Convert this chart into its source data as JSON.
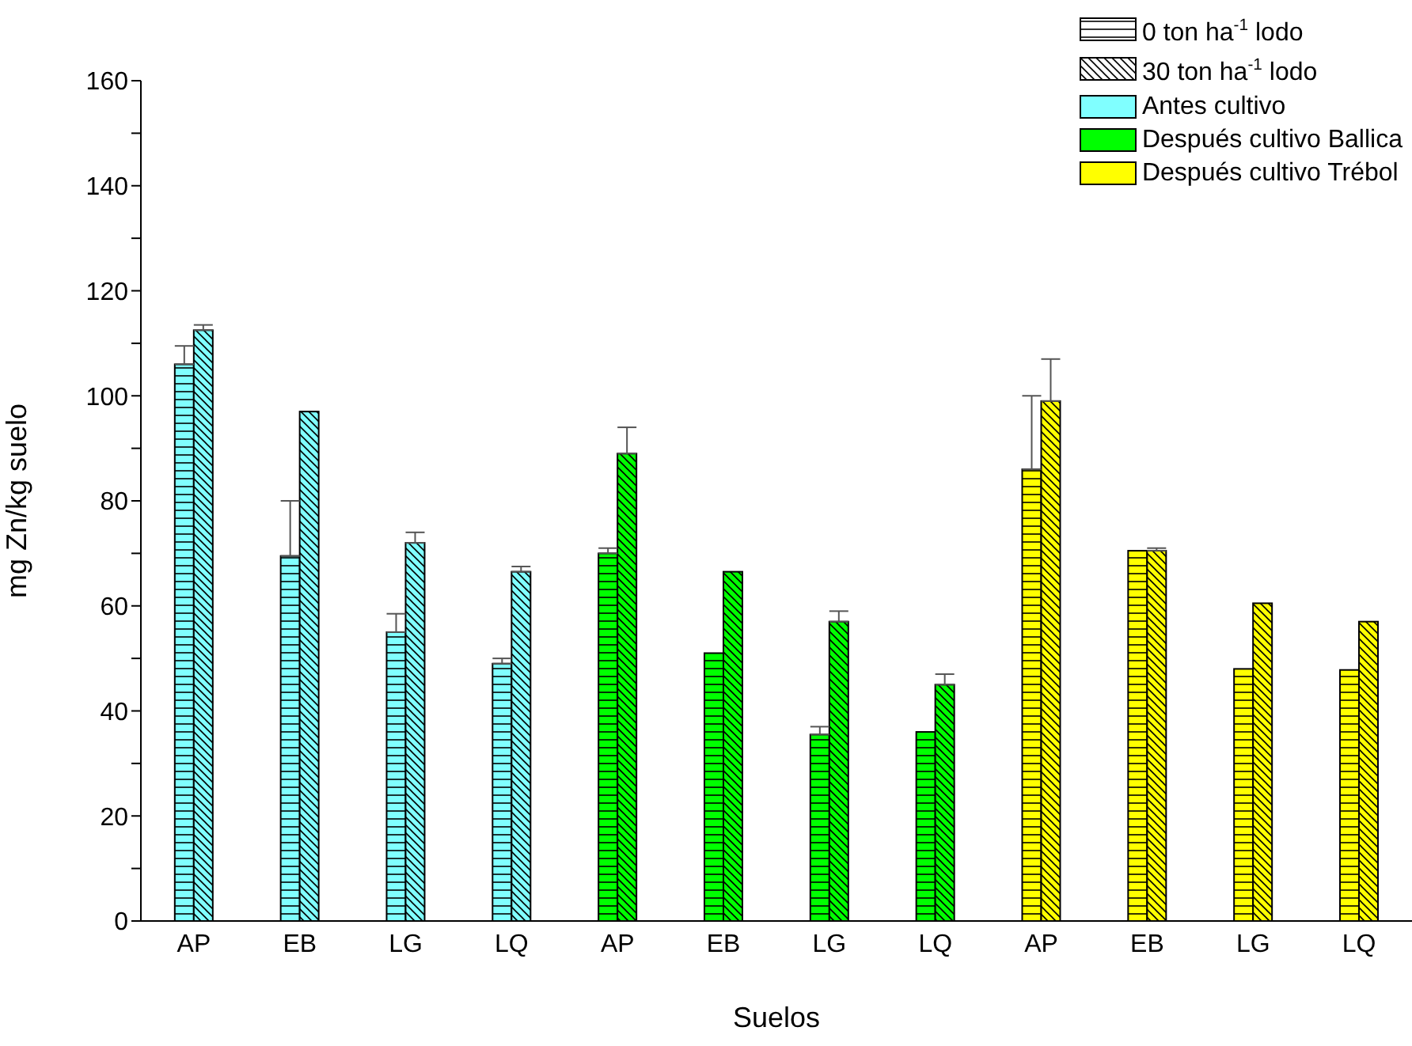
{
  "chart_data": {
    "type": "bar",
    "xlabel": "Suelos",
    "ylabel": "mg Zn/kg suelo",
    "categories": [
      "AP",
      "EB",
      "LG",
      "LQ",
      "AP",
      "EB",
      "LG",
      "LQ",
      "AP",
      "EB",
      "LG",
      "LQ"
    ],
    "series": [
      {
        "name": "0 ton ha$^{-1}$ lodo",
        "color": "#ffffff",
        "colors": [
          "#80ffff",
          "#80ffff",
          "#80ffff",
          "#80ffff",
          "#00ff00",
          "#00ff00",
          "#00ff00",
          "#00ff00",
          "#ffff00",
          "#ffff00",
          "#ffff00",
          "#ffff00"
        ],
        "values": [
          106,
          69.5,
          55,
          49,
          70,
          51,
          35.5,
          36,
          86,
          70.5,
          48,
          47.8
        ],
        "errors": [
          [
            106,
            109.5
          ],
          [
            69.5,
            80
          ],
          [
            55,
            58.5
          ],
          [
            49,
            50
          ],
          [
            70,
            71
          ],
          null,
          [
            35.5,
            37
          ],
          null,
          [
            86,
            100
          ],
          null,
          null,
          null
        ]
      },
      {
        "name": "30 ton ha$^{-1}$ lodo",
        "color": "#ffffff",
        "colors": [
          "#80ffff",
          "#80ffff",
          "#80ffff",
          "#80ffff",
          "#00ff00",
          "#00ff00",
          "#00ff00",
          "#00ff00",
          "#ffff00",
          "#ffff00",
          "#ffff00",
          "#ffff00"
        ],
        "values": [
          112.5,
          97,
          72,
          66.5,
          89,
          66.5,
          57,
          45,
          99,
          70.5,
          60.5,
          57
        ],
        "errors": [
          [
            112.5,
            113.5
          ],
          null,
          [
            72,
            74
          ],
          [
            66.5,
            67.5
          ],
          [
            89,
            94
          ],
          null,
          [
            57,
            59
          ],
          [
            45,
            47
          ],
          [
            99,
            107
          ],
          [
            70.5,
            71
          ],
          null,
          null
        ]
      },
      {
        "name": "Antes cultivo",
        "color": "#80ffff",
        "values": [
          null,
          null,
          null,
          null,
          null,
          null,
          null,
          null,
          null,
          null,
          null,
          null
        ]
      },
      {
        "name": "Después cultivo Ballica",
        "color": "#00ff00",
        "values": [
          null,
          null,
          null,
          null,
          null,
          null,
          null,
          null,
          null,
          null,
          null,
          null
        ]
      },
      {
        "name": "Después cultivo Trébol",
        "color": "#ffff00",
        "values": [
          null,
          null,
          null,
          null,
          null,
          null,
          null,
          null,
          null,
          null,
          null,
          null
        ]
      }
    ],
    "ylim": [
      0,
      160
    ],
    "yticks": [
      0,
      {
        "value": 10,
        "label": null
      },
      20,
      {
        "value": 30,
        "label": null
      },
      40,
      {
        "value": 50,
        "label": null
      },
      60,
      {
        "value": 70,
        "label": null
      },
      80,
      {
        "value": 90,
        "label": null
      },
      100,
      {
        "value": 110,
        "label": null
      },
      120,
      {
        "value": 130,
        "label": null
      },
      140,
      {
        "value": 150,
        "label": null
      },
      160
    ],
    "grid": false,
    "legend": "top right"
  }
}
